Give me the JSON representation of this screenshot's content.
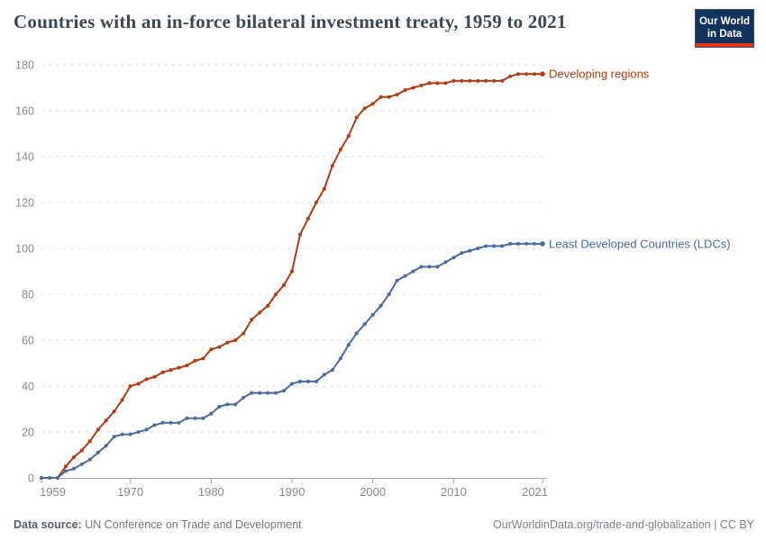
{
  "header": {
    "title": "Countries with an in-force bilateral investment treaty, 1959 to 2021",
    "logo": {
      "line1": "Our World",
      "line2": "in Data",
      "bg_color": "#14335c",
      "border_color": "#2e5180",
      "bar_color": "#e0351f"
    }
  },
  "footer": {
    "source_label": "Data source:",
    "source_value": " UN Conference on Trade and Development",
    "credit": "OurWorldinData.org/trade-and-globalization | CC BY"
  },
  "chart_data": {
    "type": "line",
    "title": "Countries with an in-force bilateral investment treaty, 1959 to 2021",
    "xlabel": "",
    "ylabel": "",
    "ylim": [
      0,
      180
    ],
    "yticks": [
      0,
      20,
      40,
      60,
      80,
      100,
      120,
      140,
      160,
      180
    ],
    "xticks": [
      1959,
      1970,
      1980,
      1990,
      2000,
      2010,
      2021
    ],
    "grid": "dashed-horizontal",
    "legend_position": "labels-at-line-end",
    "x": [
      1959,
      1960,
      1961,
      1962,
      1963,
      1964,
      1965,
      1966,
      1967,
      1968,
      1969,
      1970,
      1971,
      1972,
      1973,
      1974,
      1975,
      1976,
      1977,
      1978,
      1979,
      1980,
      1981,
      1982,
      1983,
      1984,
      1985,
      1986,
      1987,
      1988,
      1989,
      1990,
      1991,
      1992,
      1993,
      1994,
      1995,
      1996,
      1997,
      1998,
      1999,
      2000,
      2001,
      2002,
      2003,
      2004,
      2005,
      2006,
      2007,
      2008,
      2009,
      2010,
      2011,
      2012,
      2013,
      2014,
      2015,
      2016,
      2017,
      2018,
      2019,
      2020,
      2021
    ],
    "series": [
      {
        "name": "Developing regions",
        "color": "#b23c12",
        "values": [
          0,
          0,
          0,
          5,
          9,
          12,
          16,
          21,
          25,
          29,
          34,
          40,
          41,
          43,
          44,
          46,
          47,
          48,
          49,
          51,
          52,
          56,
          57,
          59,
          60,
          63,
          69,
          72,
          75,
          80,
          84,
          90,
          106,
          113,
          120,
          126,
          136,
          143,
          149,
          157,
          161,
          163,
          166,
          166,
          167,
          169,
          170,
          171,
          172,
          172,
          172,
          173,
          173,
          173,
          173,
          173,
          173,
          173,
          175,
          176,
          176,
          176,
          176
        ]
      },
      {
        "name": "Least Developed Countries (LDCs)",
        "color": "#4c6a9c",
        "values": [
          0,
          0,
          0,
          3,
          4,
          6,
          8,
          11,
          14,
          18,
          19,
          19,
          20,
          21,
          23,
          24,
          24,
          24,
          26,
          26,
          26,
          28,
          31,
          32,
          32,
          35,
          37,
          37,
          37,
          37,
          38,
          41,
          42,
          42,
          42,
          45,
          47,
          52,
          58,
          63,
          67,
          71,
          75,
          80,
          86,
          88,
          90,
          92,
          92,
          92,
          94,
          96,
          98,
          99,
          100,
          101,
          101,
          101,
          102,
          102,
          102,
          102,
          102
        ]
      }
    ],
    "style": {
      "grid_color": "#e2e2e2",
      "axis_color": "#a0a5a9",
      "tick_label_color": "#858c90"
    }
  }
}
